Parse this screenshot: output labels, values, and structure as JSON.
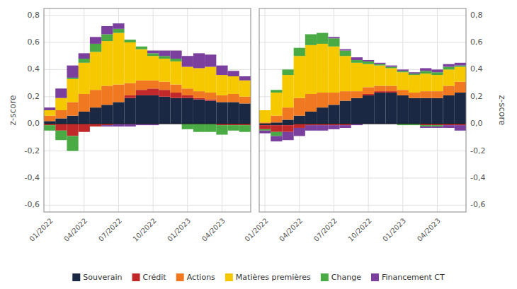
{
  "chart_data": [
    {
      "type": "bar",
      "stacked": true,
      "grid": true,
      "legend": "bottom",
      "y_label": "z-score",
      "ylim": [
        -0.65,
        0.85
      ],
      "yticks": [
        {
          "value": -0.6,
          "label": "-0,6"
        },
        {
          "value": -0.4,
          "label": "-0,4"
        },
        {
          "value": -0.2,
          "label": "-0,2"
        },
        {
          "value": 0.0,
          "label": "0,0"
        },
        {
          "value": 0.2,
          "label": "0,2"
        },
        {
          "value": 0.4,
          "label": "0,4"
        },
        {
          "value": 0.6,
          "label": "0,6"
        },
        {
          "value": 0.8,
          "label": "0,8"
        }
      ],
      "categories": [
        "01/2022",
        null,
        null,
        "04/2022",
        null,
        null,
        "07/2022",
        null,
        null,
        "10/2022",
        null,
        null,
        "01/2023",
        null,
        null,
        "04/2023",
        null,
        null
      ],
      "series": [
        {
          "name": "Souverain",
          "color": "#1a2844",
          "values": [
            0.02,
            0.04,
            0.06,
            0.09,
            0.12,
            0.14,
            0.16,
            0.19,
            0.21,
            0.21,
            0.2,
            0.19,
            0.19,
            0.18,
            0.17,
            0.16,
            0.16,
            0.15
          ]
        },
        {
          "name": "Souverain",
          "color": "#1a2844",
          "values": [
            0,
            0,
            0,
            0,
            0,
            0,
            0,
            0,
            0,
            0,
            0,
            0,
            0,
            0,
            0,
            0,
            0,
            0
          ]
        },
        {
          "name": "Crédit",
          "color": "#c0282a",
          "values": [
            0,
            0,
            0,
            0,
            0,
            0,
            0,
            0.02,
            0.04,
            0.05,
            0.05,
            0.04,
            0.02,
            0.01,
            0.01,
            0,
            0,
            0
          ]
        },
        {
          "name": "Crédit",
          "color": "#c0282a",
          "values": [
            -0.01,
            -0.05,
            -0.09,
            -0.06,
            -0.02,
            -0.01,
            0,
            0,
            0,
            0,
            0,
            0,
            0,
            0,
            0,
            -0.01,
            -0.01,
            -0.01
          ]
        },
        {
          "name": "Actions",
          "color": "#f07820",
          "values": [
            0.04,
            0.06,
            0.1,
            0.13,
            0.13,
            0.14,
            0.13,
            0.09,
            0.07,
            0.06,
            0.06,
            0.06,
            0.05,
            0.05,
            0.05,
            0.05,
            0.06,
            0.05
          ]
        },
        {
          "name": "Actions",
          "color": "#f07820",
          "values": [
            0,
            0,
            0,
            0,
            0,
            0,
            0,
            0,
            0,
            0,
            0,
            0,
            0,
            0,
            0,
            0,
            0,
            0
          ]
        },
        {
          "name": "Matières premières",
          "color": "#f5c800",
          "values": [
            0.04,
            0.09,
            0.17,
            0.23,
            0.28,
            0.33,
            0.38,
            0.3,
            0.23,
            0.18,
            0.17,
            0.17,
            0.16,
            0.17,
            0.19,
            0.15,
            0.13,
            0.12
          ]
        },
        {
          "name": "Matières premières",
          "color": "#f5c800",
          "values": [
            0,
            0,
            0,
            0,
            0,
            0,
            0,
            0,
            0,
            0,
            0,
            0,
            0,
            0,
            0,
            0,
            0,
            0
          ]
        },
        {
          "name": "Change",
          "color": "#4aaa44",
          "values": [
            0,
            0,
            0.01,
            0.03,
            0.06,
            0.05,
            0.03,
            0.02,
            0.02,
            0.02,
            0.02,
            0.02,
            0,
            0,
            0,
            0,
            0,
            0
          ]
        },
        {
          "name": "Change",
          "color": "#4aaa44",
          "values": [
            -0.04,
            -0.07,
            -0.11,
            0,
            0,
            0,
            0,
            0,
            0,
            0,
            0,
            0,
            -0.04,
            -0.06,
            -0.06,
            -0.07,
            -0.04,
            -0.05
          ]
        },
        {
          "name": "Financement CT",
          "color": "#7b3f9e",
          "values": [
            0.02,
            0.07,
            0.09,
            0.04,
            0.05,
            0.06,
            0.04,
            0,
            0,
            0.02,
            0.04,
            0.06,
            0.08,
            0.11,
            0.09,
            0.07,
            0.04,
            0.03
          ]
        },
        {
          "name": "Financement CT",
          "color": "#7b3f9e",
          "values": [
            0,
            0,
            0,
            0,
            0,
            -0.01,
            -0.02,
            -0.02,
            -0.01,
            -0.01,
            0,
            0,
            0,
            0,
            0,
            0,
            0,
            0
          ]
        }
      ]
    },
    {
      "type": "bar",
      "stacked": true,
      "grid": true,
      "y_label": "z-score",
      "ylim": [
        -0.65,
        0.85
      ],
      "yticks": [
        {
          "value": -0.6,
          "label": "-0,6"
        },
        {
          "value": -0.4,
          "label": "-0,4"
        },
        {
          "value": -0.2,
          "label": "-0,2"
        },
        {
          "value": 0.0,
          "label": "0,0"
        },
        {
          "value": 0.2,
          "label": "0,2"
        },
        {
          "value": 0.4,
          "label": "0,4"
        },
        {
          "value": 0.6,
          "label": "0,6"
        },
        {
          "value": 0.8,
          "label": "0,8"
        }
      ],
      "categories": [
        "01/2022",
        null,
        null,
        "04/2022",
        null,
        null,
        "07/2022",
        null,
        null,
        "10/2022",
        null,
        null,
        "01/2023",
        null,
        null,
        "04/2023",
        null,
        null
      ],
      "series": [
        {
          "name": "Souverain",
          "color": "#1a2844",
          "values": [
            0,
            0.01,
            0.03,
            0.06,
            0.09,
            0.12,
            0.14,
            0.17,
            0.19,
            0.21,
            0.23,
            0.23,
            0.21,
            0.19,
            0.19,
            0.19,
            0.21,
            0.23
          ]
        },
        {
          "name": "Souverain",
          "color": "#1a2844",
          "values": [
            -0.01,
            -0.01,
            -0.01,
            0,
            0,
            0,
            0,
            0,
            0,
            0,
            0,
            0,
            0,
            0,
            0,
            0,
            0,
            0
          ]
        },
        {
          "name": "Crédit",
          "color": "#c0282a",
          "values": [
            0,
            0,
            0,
            0,
            0,
            0,
            0,
            0,
            0,
            0.01,
            0.01,
            0.01,
            0,
            0,
            0,
            0,
            0,
            0
          ]
        },
        {
          "name": "Crédit",
          "color": "#c0282a",
          "values": [
            -0.03,
            -0.05,
            -0.05,
            -0.03,
            -0.01,
            -0.01,
            -0.01,
            -0.01,
            0,
            0,
            0,
            0,
            0,
            0,
            -0.01,
            -0.01,
            -0.01,
            -0.01
          ]
        },
        {
          "name": "Actions",
          "color": "#f07820",
          "values": [
            0.01,
            0.05,
            0.09,
            0.13,
            0.13,
            0.11,
            0.09,
            0.07,
            0.05,
            0.05,
            0.04,
            0.04,
            0.04,
            0.04,
            0.05,
            0.05,
            0.07,
            0.08
          ]
        },
        {
          "name": "Actions",
          "color": "#f07820",
          "values": [
            0,
            0,
            0,
            0,
            0,
            0,
            0,
            0,
            0,
            0,
            0,
            0,
            0,
            0,
            0,
            0,
            0,
            0
          ]
        },
        {
          "name": "Matières premières",
          "color": "#f5c800",
          "values": [
            0.09,
            0.17,
            0.24,
            0.31,
            0.36,
            0.36,
            0.34,
            0.26,
            0.21,
            0.17,
            0.15,
            0.13,
            0.13,
            0.13,
            0.13,
            0.12,
            0.12,
            0.11
          ]
        },
        {
          "name": "Matières premières",
          "color": "#f5c800",
          "values": [
            0,
            0,
            0,
            0,
            0,
            0,
            0,
            0,
            0,
            0,
            0,
            0,
            0,
            0,
            0,
            0,
            0,
            0
          ]
        },
        {
          "name": "Change",
          "color": "#4aaa44",
          "values": [
            0,
            0.02,
            0.04,
            0.06,
            0.08,
            0.08,
            0.06,
            0.04,
            0.02,
            0.02,
            0.01,
            0.01,
            0.01,
            0.01,
            0.02,
            0.02,
            0.02,
            0.01
          ]
        },
        {
          "name": "Change",
          "color": "#4aaa44",
          "values": [
            -0.01,
            -0.03,
            0,
            0,
            0,
            0,
            0,
            0,
            0,
            0,
            0,
            0,
            -0.01,
            -0.01,
            -0.01,
            -0.01,
            0,
            0
          ]
        },
        {
          "name": "Financement CT",
          "color": "#7b3f9e",
          "values": [
            0,
            0,
            0,
            0,
            0,
            0,
            0.01,
            0.01,
            0.02,
            0.01,
            0.01,
            0.01,
            0.01,
            0.01,
            0.02,
            0.02,
            0.02,
            0.02
          ]
        },
        {
          "name": "Financement CT",
          "color": "#7b3f9e",
          "values": [
            -0.02,
            -0.04,
            -0.06,
            -0.06,
            -0.04,
            -0.04,
            -0.03,
            -0.02,
            -0.01,
            0,
            0,
            0,
            0,
            0,
            -0.01,
            -0.01,
            -0.02,
            -0.04
          ]
        }
      ]
    }
  ]
}
